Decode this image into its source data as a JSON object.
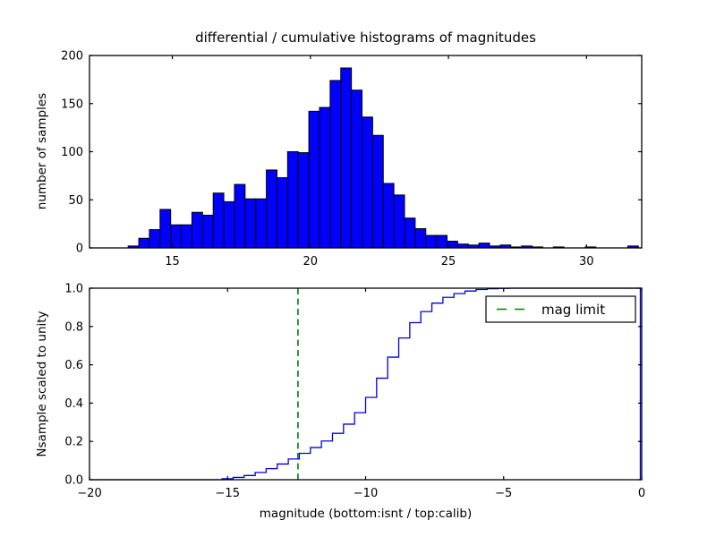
{
  "figure": {
    "title": "differential / cumulative histograms of magnitudes",
    "background": "#ffffff"
  },
  "colors": {
    "bar_fill": "#0000ff",
    "bar_edge": "#000000",
    "step_line": "#0000dd",
    "mag_limit_line": "#008000",
    "axis": "#000000",
    "legend_bg": "#ffffff",
    "text": "#000000"
  },
  "chart_data": [
    {
      "type": "bar",
      "subplot": "top",
      "ylabel": "number of samples",
      "xlim": [
        12,
        32
      ],
      "ylim": [
        0,
        200
      ],
      "xticks": [
        15,
        20,
        25,
        30
      ],
      "xtick_labels": [
        "15",
        "20",
        "25",
        "30"
      ],
      "yticks": [
        0,
        50,
        100,
        150,
        200
      ],
      "ytick_labels": [
        "0",
        "50",
        "100",
        "150",
        "200"
      ],
      "grid": false,
      "bin_start": 13.4,
      "bin_width": 0.385,
      "counts": [
        2,
        10,
        19,
        40,
        24,
        24,
        37,
        34,
        57,
        48,
        66,
        51,
        51,
        81,
        73,
        100,
        99,
        142,
        146,
        174,
        187,
        164,
        136,
        117,
        67,
        55,
        31,
        20,
        13,
        13,
        7,
        4,
        3,
        5,
        2,
        3,
        1,
        2,
        1,
        0,
        1,
        0,
        0,
        1,
        0,
        0,
        0,
        2
      ]
    },
    {
      "type": "line",
      "subplot": "bottom",
      "style": "step-cumulative",
      "ylabel": "Nsample scaled to unity",
      "xlabel": "magnitude (bottom:isnt / top:calib)",
      "xlim": [
        -20,
        0
      ],
      "ylim": [
        0,
        1
      ],
      "xticks": [
        -20,
        -15,
        -10,
        -5,
        0
      ],
      "xtick_labels": [
        "−20",
        "−15",
        "−10",
        "−5",
        "0"
      ],
      "yticks": [
        0,
        0.2,
        0.4,
        0.6,
        0.8,
        1.0
      ],
      "ytick_labels": [
        "0.0",
        "0.2",
        "0.4",
        "0.6",
        "0.8",
        "1.0"
      ],
      "grid": false,
      "mag_limit_x": -12.45,
      "legend": {
        "label": "mag limit",
        "position": "upper right"
      },
      "points": [
        [
          -20,
          0
        ],
        [
          -15.6,
          0
        ],
        [
          -15.2,
          0.005
        ],
        [
          -14.8,
          0.012
        ],
        [
          -14.4,
          0.022
        ],
        [
          -14.0,
          0.038
        ],
        [
          -13.6,
          0.058
        ],
        [
          -13.2,
          0.082
        ],
        [
          -12.8,
          0.108
        ],
        [
          -12.4,
          0.138
        ],
        [
          -12.0,
          0.168
        ],
        [
          -11.6,
          0.202
        ],
        [
          -11.2,
          0.242
        ],
        [
          -10.8,
          0.29
        ],
        [
          -10.4,
          0.35
        ],
        [
          -10.0,
          0.43
        ],
        [
          -9.6,
          0.53
        ],
        [
          -9.2,
          0.64
        ],
        [
          -8.8,
          0.74
        ],
        [
          -8.4,
          0.82
        ],
        [
          -8.0,
          0.878
        ],
        [
          -7.6,
          0.922
        ],
        [
          -7.2,
          0.952
        ],
        [
          -6.8,
          0.972
        ],
        [
          -6.4,
          0.985
        ],
        [
          -6.0,
          0.993
        ],
        [
          -5.6,
          0.997
        ],
        [
          -5.2,
          0.999
        ],
        [
          -4.8,
          1.0
        ],
        [
          -0.05,
          1.0
        ],
        [
          -0.05,
          0
        ]
      ]
    }
  ]
}
